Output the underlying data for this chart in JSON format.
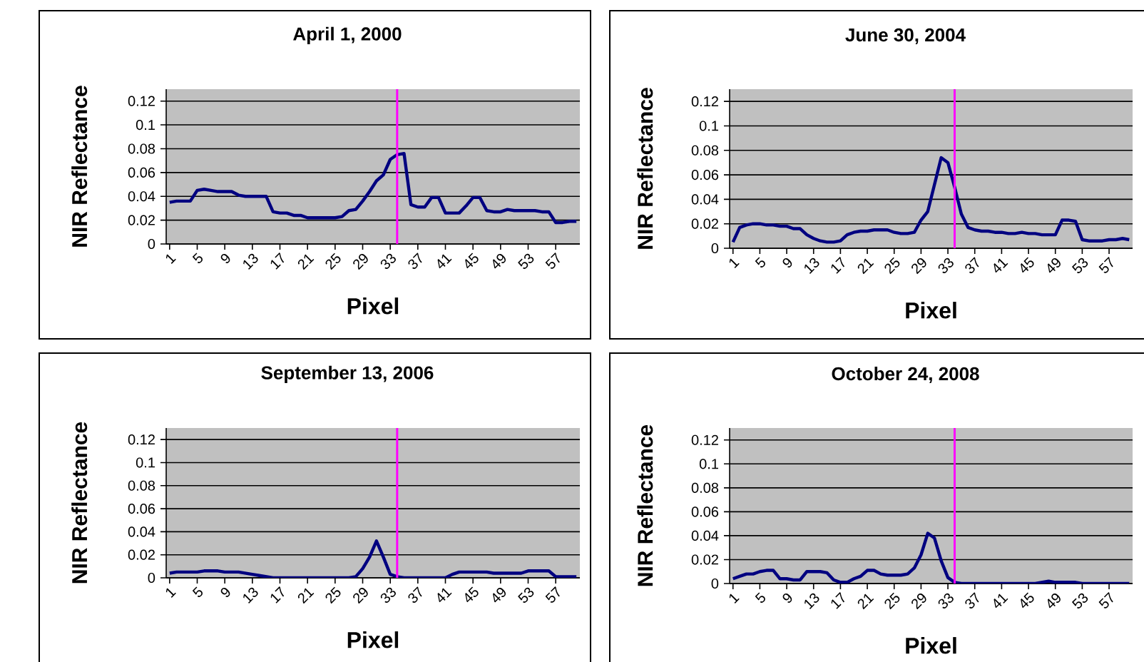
{
  "chart_data": [
    {
      "type": "line",
      "title": "April 1, 2000",
      "xlabel": "Pixel",
      "ylabel": "NIR Reflectance",
      "color": "#000080",
      "grid": "y",
      "xlim": [
        0.5,
        60.5
      ],
      "xticks": [
        1,
        5,
        9,
        13,
        17,
        21,
        25,
        29,
        33,
        37,
        41,
        45,
        49,
        53,
        57
      ],
      "ylim": [
        0,
        0.13
      ],
      "yticks": [
        0,
        0.02,
        0.04,
        0.06,
        0.08,
        0.1,
        0.12
      ],
      "x": [
        1,
        2,
        3,
        4,
        5,
        6,
        7,
        8,
        9,
        10,
        11,
        12,
        13,
        14,
        15,
        16,
        17,
        18,
        19,
        20,
        21,
        22,
        23,
        24,
        25,
        26,
        27,
        28,
        29,
        30,
        31,
        32,
        33,
        34,
        35,
        36,
        37,
        38,
        39,
        40,
        41,
        42,
        43,
        44,
        45,
        46,
        47,
        48,
        49,
        50,
        51,
        52,
        53,
        54,
        55,
        56,
        57,
        58,
        59,
        60
      ],
      "values": [
        0.035,
        0.036,
        0.036,
        0.036,
        0.045,
        0.046,
        0.045,
        0.044,
        0.044,
        0.044,
        0.041,
        0.04,
        0.04,
        0.04,
        0.04,
        0.027,
        0.026,
        0.026,
        0.024,
        0.024,
        0.022,
        0.022,
        0.022,
        0.022,
        0.022,
        0.023,
        0.028,
        0.029,
        0.036,
        0.044,
        0.053,
        0.058,
        0.071,
        0.075,
        0.076,
        0.033,
        0.031,
        0.031,
        0.039,
        0.039,
        0.026,
        0.026,
        0.026,
        0.032,
        0.039,
        0.039,
        0.028,
        0.027,
        0.027,
        0.029,
        0.028,
        0.028,
        0.028,
        0.028,
        0.027,
        0.027,
        0.018,
        0.018,
        0.019,
        0.019
      ],
      "ref_lines": [
        {
          "axis": "x",
          "value": 34,
          "color": "#ff00ff"
        }
      ]
    },
    {
      "type": "line",
      "title": "June 30, 2004",
      "xlabel": "Pixel",
      "ylabel": "NIR Reflectance",
      "color": "#000080",
      "grid": "y",
      "xlim": [
        0.5,
        60.5
      ],
      "xticks": [
        1,
        5,
        9,
        13,
        17,
        21,
        25,
        29,
        33,
        37,
        41,
        45,
        49,
        53,
        57
      ],
      "ylim": [
        0,
        0.13
      ],
      "yticks": [
        0,
        0.02,
        0.04,
        0.06,
        0.08,
        0.1,
        0.12
      ],
      "x": [
        1,
        2,
        3,
        4,
        5,
        6,
        7,
        8,
        9,
        10,
        11,
        12,
        13,
        14,
        15,
        16,
        17,
        18,
        19,
        20,
        21,
        22,
        23,
        24,
        25,
        26,
        27,
        28,
        29,
        30,
        31,
        32,
        33,
        34,
        35,
        36,
        37,
        38,
        39,
        40,
        41,
        42,
        43,
        44,
        45,
        46,
        47,
        48,
        49,
        50,
        51,
        52,
        53,
        54,
        55,
        56,
        57,
        58,
        59,
        60
      ],
      "values": [
        0.005,
        0.017,
        0.019,
        0.02,
        0.02,
        0.019,
        0.019,
        0.018,
        0.018,
        0.016,
        0.016,
        0.011,
        0.008,
        0.006,
        0.005,
        0.005,
        0.006,
        0.011,
        0.013,
        0.014,
        0.014,
        0.015,
        0.015,
        0.015,
        0.013,
        0.012,
        0.012,
        0.013,
        0.023,
        0.03,
        0.052,
        0.074,
        0.07,
        0.05,
        0.028,
        0.017,
        0.015,
        0.014,
        0.014,
        0.013,
        0.013,
        0.012,
        0.012,
        0.013,
        0.012,
        0.012,
        0.011,
        0.011,
        0.011,
        0.023,
        0.023,
        0.022,
        0.007,
        0.006,
        0.006,
        0.006,
        0.007,
        0.007,
        0.008,
        0.007
      ],
      "ref_lines": [
        {
          "axis": "x",
          "value": 34,
          "color": "#ff00ff"
        }
      ]
    },
    {
      "type": "line",
      "title": "September 13, 2006",
      "xlabel": "Pixel",
      "ylabel": "NIR Reflectance",
      "color": "#000080",
      "grid": "y",
      "xlim": [
        0.5,
        60.5
      ],
      "xticks": [
        1,
        5,
        9,
        13,
        17,
        21,
        25,
        29,
        33,
        37,
        41,
        45,
        49,
        53,
        57
      ],
      "ylim": [
        0,
        0.13
      ],
      "yticks": [
        0,
        0.02,
        0.04,
        0.06,
        0.08,
        0.1,
        0.12
      ],
      "x": [
        1,
        2,
        3,
        4,
        5,
        6,
        7,
        8,
        9,
        10,
        11,
        12,
        13,
        14,
        15,
        16,
        17,
        18,
        19,
        20,
        21,
        22,
        23,
        24,
        25,
        26,
        27,
        28,
        29,
        30,
        31,
        32,
        33,
        34,
        35,
        36,
        37,
        38,
        39,
        40,
        41,
        42,
        43,
        44,
        45,
        46,
        47,
        48,
        49,
        50,
        51,
        52,
        53,
        54,
        55,
        56,
        57,
        58,
        59,
        60
      ],
      "values": [
        0.004,
        0.005,
        0.005,
        0.005,
        0.005,
        0.006,
        0.006,
        0.006,
        0.005,
        0.005,
        0.005,
        0.004,
        0.003,
        0.002,
        0.001,
        0,
        0,
        0,
        0,
        0,
        0,
        0,
        0,
        0,
        0,
        0,
        0,
        0.001,
        0.008,
        0.018,
        0.032,
        0.018,
        0.003,
        0.001,
        0,
        0,
        0,
        0,
        0,
        0,
        0,
        0.003,
        0.005,
        0.005,
        0.005,
        0.005,
        0.005,
        0.004,
        0.004,
        0.004,
        0.004,
        0.004,
        0.006,
        0.006,
        0.006,
        0.006,
        0.001,
        0.001,
        0.001,
        0.001
      ],
      "ref_lines": [
        {
          "axis": "x",
          "value": 34,
          "color": "#ff00ff"
        }
      ]
    },
    {
      "type": "line",
      "title": "October 24, 2008",
      "xlabel": "Pixel",
      "ylabel": "NIR Reflectance",
      "color": "#000080",
      "grid": "y",
      "xlim": [
        0.5,
        60.5
      ],
      "xticks": [
        1,
        5,
        9,
        13,
        17,
        21,
        25,
        29,
        33,
        37,
        41,
        45,
        49,
        53,
        57
      ],
      "ylim": [
        0,
        0.13
      ],
      "yticks": [
        0,
        0.02,
        0.04,
        0.06,
        0.08,
        0.1,
        0.12
      ],
      "x": [
        1,
        2,
        3,
        4,
        5,
        6,
        7,
        8,
        9,
        10,
        11,
        12,
        13,
        14,
        15,
        16,
        17,
        18,
        19,
        20,
        21,
        22,
        23,
        24,
        25,
        26,
        27,
        28,
        29,
        30,
        31,
        32,
        33,
        34,
        35,
        36,
        37,
        38,
        39,
        40,
        41,
        42,
        43,
        44,
        45,
        46,
        47,
        48,
        49,
        50,
        51,
        52,
        53,
        54,
        55,
        56,
        57,
        58,
        59,
        60
      ],
      "values": [
        0.004,
        0.006,
        0.008,
        0.008,
        0.01,
        0.011,
        0.011,
        0.004,
        0.004,
        0.003,
        0.003,
        0.01,
        0.01,
        0.01,
        0.009,
        0.003,
        0.001,
        0.001,
        0.004,
        0.006,
        0.011,
        0.011,
        0.008,
        0.007,
        0.007,
        0.007,
        0.008,
        0.013,
        0.024,
        0.042,
        0.038,
        0.019,
        0.005,
        0.001,
        0,
        0,
        0,
        0,
        0,
        0,
        0,
        0,
        0,
        0,
        0,
        0,
        0.001,
        0.002,
        0.001,
        0.001,
        0.001,
        0.001,
        0,
        0,
        0,
        0,
        0,
        0,
        0,
        0
      ],
      "ref_lines": [
        {
          "axis": "x",
          "value": 34,
          "color": "#ff00ff"
        }
      ]
    }
  ]
}
